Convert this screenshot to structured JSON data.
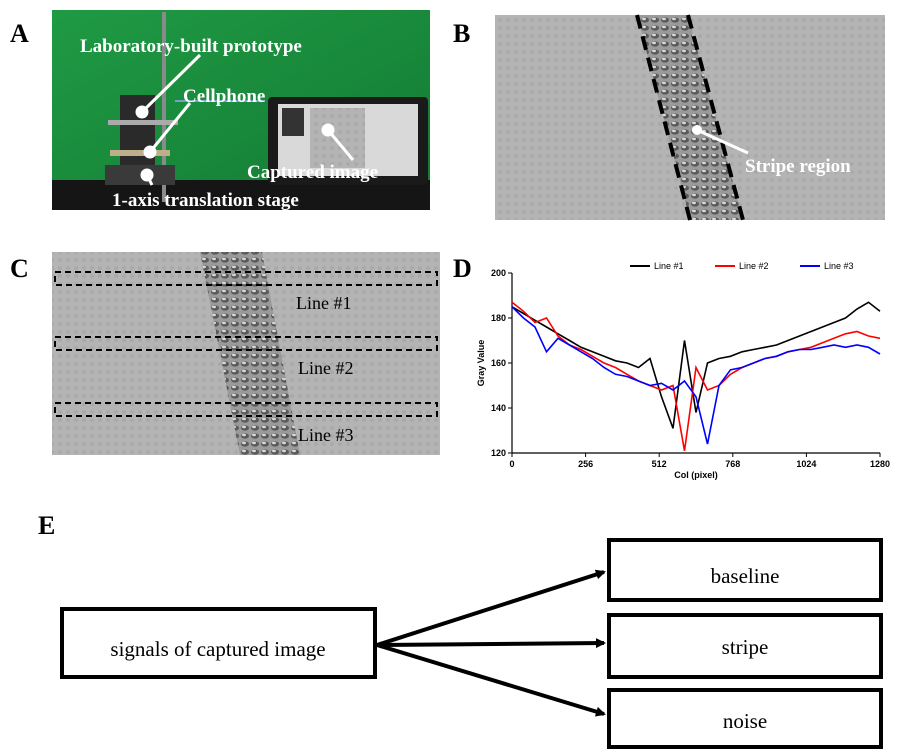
{
  "panel_a": {
    "label": "A",
    "annotations": [
      "Laboratory-built prototype",
      "Cellphone",
      "Captured image",
      "1-axis translation stage"
    ]
  },
  "panel_b": {
    "label": "B",
    "annotations": [
      "Stripe region"
    ]
  },
  "panel_c": {
    "label": "C",
    "lines": [
      "Line #1",
      "Line #2",
      "Line #3"
    ]
  },
  "panel_d": {
    "label": "D"
  },
  "chart_data": {
    "type": "line",
    "x_label": "Col (pixel)",
    "y_label": "Gray Value",
    "x": [
      0,
      40,
      80,
      120,
      160,
      200,
      240,
      280,
      320,
      360,
      400,
      440,
      480,
      520,
      560,
      600,
      640,
      680,
      720,
      760,
      800,
      840,
      880,
      920,
      960,
      1000,
      1040,
      1080,
      1120,
      1160,
      1200,
      1240,
      1280
    ],
    "series": [
      {
        "name": "Line #1",
        "color": "#000000",
        "values": [
          185,
          182,
          179,
          176,
          173,
          170,
          167,
          165,
          163,
          161,
          160,
          158,
          162,
          145,
          131,
          170,
          138,
          160,
          162,
          163,
          165,
          166,
          167,
          168,
          170,
          172,
          174,
          176,
          178,
          180,
          184,
          187,
          183
        ]
      },
      {
        "name": "Line #2",
        "color": "#ff0000",
        "values": [
          187,
          183,
          178,
          180,
          172,
          168,
          166,
          163,
          160,
          158,
          155,
          152,
          150,
          148,
          150,
          121,
          158,
          148,
          150,
          155,
          158,
          160,
          162,
          163,
          165,
          166,
          167,
          169,
          171,
          173,
          174,
          172,
          171
        ]
      },
      {
        "name": "Line #3",
        "color": "#0000ff",
        "values": [
          185,
          180,
          176,
          165,
          171,
          168,
          165,
          162,
          158,
          155,
          154,
          152,
          150,
          151,
          148,
          152,
          145,
          124,
          150,
          157,
          158,
          160,
          162,
          163,
          165,
          166,
          166,
          167,
          168,
          167,
          168,
          167,
          164
        ]
      }
    ],
    "xlim": [
      0,
      1280
    ],
    "xticks": [
      0,
      256,
      512,
      768,
      1024,
      1280
    ],
    "ylim": [
      120,
      200
    ],
    "yticks": [
      120,
      140,
      160,
      180,
      200
    ],
    "legend": "top"
  },
  "panel_e": {
    "label": "E",
    "source": "signals of captured image",
    "targets": [
      "baseline",
      "stripe",
      "noise"
    ]
  }
}
